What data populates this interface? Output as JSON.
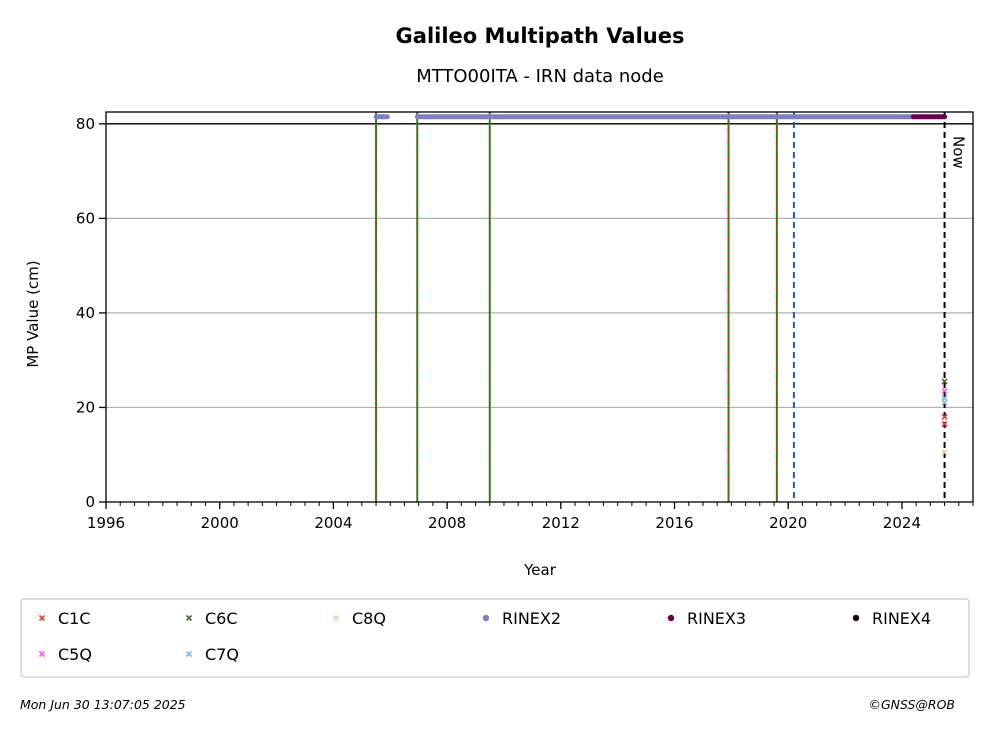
{
  "chart_data": {
    "type": "scatter",
    "title": "Galileo Multipath Values",
    "subtitle": "MTTO00ITA - IRN data node",
    "xlabel": "Year",
    "ylabel": "MP Value (cm)",
    "xlim": [
      1996,
      2026.5
    ],
    "ylim": [
      0,
      82.5
    ],
    "x_ticks": [
      1996,
      2000,
      2004,
      2008,
      2012,
      2016,
      2020,
      2024
    ],
    "x_minor_step": 0.5,
    "y_ticks": [
      0,
      20,
      40,
      60,
      80
    ],
    "grid": "horizontal",
    "threshold_line": 80,
    "now_label": "Now",
    "now_x": 2025.5,
    "event_lines": {
      "equipment_changes": [
        2005.5,
        2006.95,
        2009.5,
        2017.9,
        2019.6
      ],
      "blue_dashed": [
        2020.2
      ]
    },
    "series": [
      {
        "name": "C1C",
        "marker": "x",
        "color": "#e8392b",
        "points": [
          [
            2025.5,
            16.5
          ],
          [
            2025.5,
            18.0
          ]
        ]
      },
      {
        "name": "C5Q",
        "marker": "x",
        "color": "#f25fe8",
        "points": [
          [
            2025.5,
            23.5
          ]
        ]
      },
      {
        "name": "C6C",
        "marker": "x",
        "color": "#4a6e2a",
        "points": [
          [
            2025.5,
            25.5
          ]
        ]
      },
      {
        "name": "C7Q",
        "marker": "x",
        "color": "#7fb5e0",
        "points": [
          [
            2025.5,
            22.0
          ],
          [
            2025.5,
            21.0
          ]
        ]
      },
      {
        "name": "C8Q",
        "marker": "x",
        "color": "#f3c9a2",
        "points": [
          [
            2025.5,
            10.5
          ]
        ]
      },
      {
        "name": "RINEX2",
        "marker": "dot",
        "color": "#8080c0",
        "segments": [
          [
            2005.5,
            2005.9
          ],
          [
            2006.95,
            2024.4
          ]
        ],
        "y": 81.5
      },
      {
        "name": "RINEX3",
        "marker": "dot",
        "color": "#6b0050",
        "segments": [
          [
            2024.4,
            2025.5
          ]
        ],
        "y": 81.5
      },
      {
        "name": "RINEX4",
        "marker": "dot",
        "color": "#1a0010",
        "segments": [],
        "y": 81.5
      }
    ],
    "legend_order": [
      "C1C",
      "C6C",
      "C8Q",
      "RINEX2",
      "RINEX3",
      "RINEX4",
      "C5Q",
      "C7Q"
    ],
    "legend_position": "bottom"
  },
  "footer": {
    "timestamp": "Mon Jun 30 13:07:05 2025",
    "copyright": "©GNSS@ROB"
  }
}
